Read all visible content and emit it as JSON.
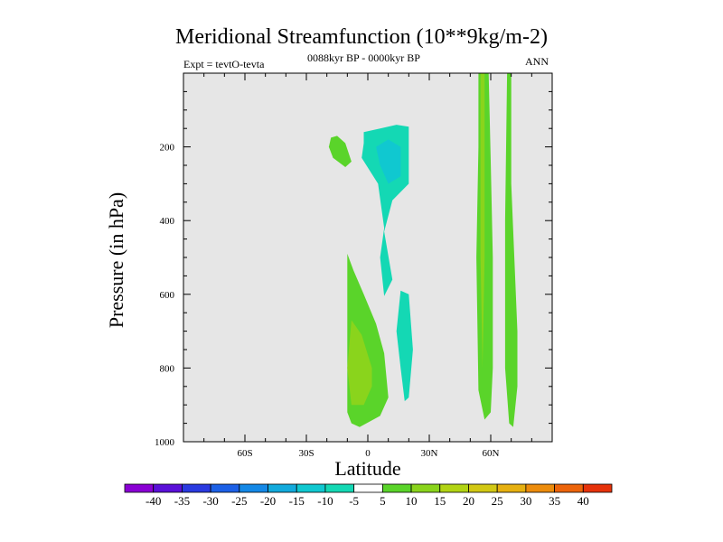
{
  "chart_data": {
    "type": "contour",
    "title": "Meridional Streamfunction (10**9kg/m-2)",
    "subtitle_left": "Expt = tevtO-tevta",
    "subtitle_center": "0088kyr BP - 0000kyr BP",
    "subtitle_right": "ANN",
    "xlabel": "Latitude",
    "ylabel": "Pressure (in hPa)",
    "xlim": [
      -90,
      90
    ],
    "ylim": [
      1000,
      0
    ],
    "x_ticks": [
      {
        "value": -60,
        "label": "60S"
      },
      {
        "value": -30,
        "label": "30S"
      },
      {
        "value": 0,
        "label": "0"
      },
      {
        "value": 30,
        "label": "30N"
      },
      {
        "value": 60,
        "label": "60N"
      }
    ],
    "y_ticks": [
      {
        "value": 200,
        "label": "200"
      },
      {
        "value": 400,
        "label": "400"
      },
      {
        "value": 600,
        "label": "600"
      },
      {
        "value": 800,
        "label": "800"
      },
      {
        "value": 1000,
        "label": "1000"
      }
    ],
    "background_color": "#e6e6e6",
    "colorbar": {
      "labels": [
        "-40",
        "-35",
        "-30",
        "-25",
        "-20",
        "-15",
        "-10",
        "-5",
        "5",
        "10",
        "15",
        "20",
        "25",
        "30",
        "35",
        "40"
      ],
      "colors": [
        "#8a00d4",
        "#5a10d8",
        "#2a3ae0",
        "#1c60e6",
        "#1488e6",
        "#12aadc",
        "#10c8d0",
        "#14d8b4",
        "#ffffff",
        "#5ad42a",
        "#8ad41c",
        "#b2d414",
        "#d2c814",
        "#e6b010",
        "#ec8c0c",
        "#ec640a",
        "#e6320a"
      ]
    },
    "regions": [
      {
        "band": "-5 to -10",
        "color": "#14d8b4",
        "polygon": [
          [
            -2,
            160
          ],
          [
            6,
            150
          ],
          [
            14,
            140
          ],
          [
            20,
            145
          ],
          [
            20,
            300
          ],
          [
            12,
            345
          ],
          [
            8,
            430
          ],
          [
            12,
            560
          ],
          [
            8,
            605
          ],
          [
            6,
            500
          ],
          [
            8,
            420
          ],
          [
            5,
            300
          ],
          [
            -3,
            230
          ],
          [
            -2,
            190
          ]
        ]
      },
      {
        "band": "-10 to -15",
        "color": "#10c8d0",
        "polygon": [
          [
            4,
            200
          ],
          [
            10,
            180
          ],
          [
            16,
            200
          ],
          [
            16,
            280
          ],
          [
            10,
            300
          ],
          [
            6,
            250
          ]
        ]
      },
      {
        "band": "-5 to -10",
        "color": "#14d8b4",
        "polygon": [
          [
            16,
            590
          ],
          [
            20,
            600
          ],
          [
            22,
            750
          ],
          [
            20,
            880
          ],
          [
            18,
            890
          ],
          [
            16,
            800
          ],
          [
            14,
            700
          ]
        ]
      },
      {
        "band": "5 to 10",
        "color": "#5ad42a",
        "polygon": [
          [
            -18,
            175
          ],
          [
            -15,
            170
          ],
          [
            -11,
            190
          ],
          [
            -8,
            240
          ],
          [
            -11,
            255
          ],
          [
            -17,
            230
          ],
          [
            -19,
            200
          ]
        ]
      },
      {
        "band": "5 to 10",
        "color": "#5ad42a",
        "polygon": [
          [
            -10,
            490
          ],
          [
            -7,
            535
          ],
          [
            -2,
            600
          ],
          [
            4,
            680
          ],
          [
            8,
            760
          ],
          [
            10,
            880
          ],
          [
            6,
            930
          ],
          [
            -4,
            960
          ],
          [
            -8,
            950
          ],
          [
            -10,
            920
          ],
          [
            -10,
            700
          ]
        ]
      },
      {
        "band": "10 to 15",
        "color": "#8ad41c",
        "polygon": [
          [
            -8,
            670
          ],
          [
            -3,
            710
          ],
          [
            2,
            800
          ],
          [
            2,
            850
          ],
          [
            -2,
            900
          ],
          [
            -8,
            900
          ],
          [
            -10,
            800
          ]
        ]
      },
      {
        "band": "5 to 10",
        "color": "#5ad42a",
        "polygon": [
          [
            54,
            0
          ],
          [
            59,
            0
          ],
          [
            60,
            240
          ],
          [
            61,
            500
          ],
          [
            61,
            800
          ],
          [
            60,
            920
          ],
          [
            57,
            940
          ],
          [
            54,
            860
          ],
          [
            53,
            500
          ],
          [
            54,
            200
          ]
        ]
      },
      {
        "band": "10 to 15",
        "color": "#8ad41c",
        "polygon": [
          [
            55,
            0
          ],
          [
            57,
            0
          ],
          [
            57,
            500
          ],
          [
            56,
            800
          ],
          [
            55,
            500
          ]
        ]
      },
      {
        "band": "5 to 10",
        "color": "#5ad42a",
        "polygon": [
          [
            68,
            0
          ],
          [
            70,
            0
          ],
          [
            70,
            300
          ],
          [
            73,
            700
          ],
          [
            73,
            850
          ],
          [
            71,
            960
          ],
          [
            69,
            950
          ],
          [
            67,
            800
          ],
          [
            67,
            400
          ]
        ]
      }
    ]
  }
}
